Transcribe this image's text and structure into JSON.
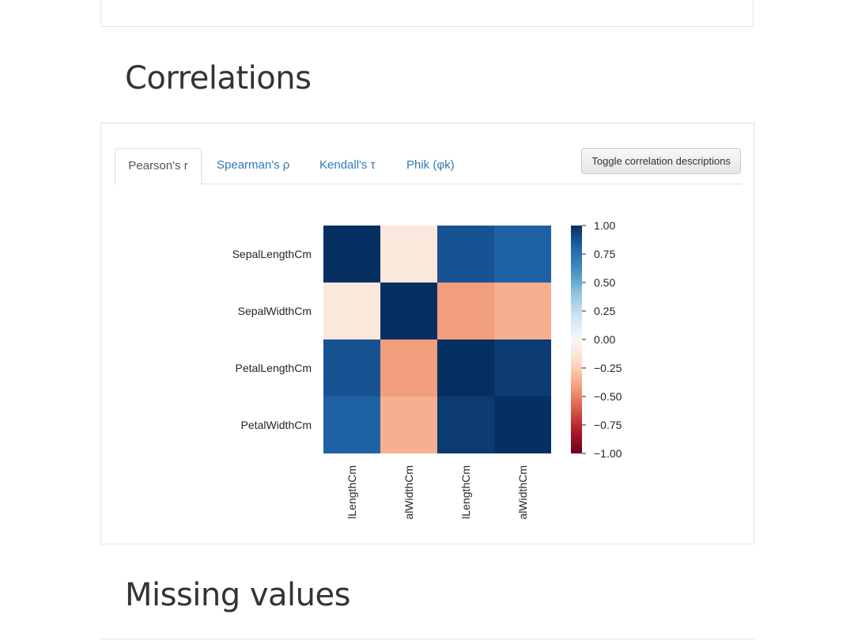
{
  "sections": {
    "correlations_title": "Correlations",
    "missing_title": "Missing values"
  },
  "tabs": [
    {
      "label": "Pearson's r",
      "active": true
    },
    {
      "label": "Spearman's ρ",
      "active": false
    },
    {
      "label": "Kendall's τ",
      "active": false
    },
    {
      "label": "Phik (φk)",
      "active": false
    }
  ],
  "toggle_button": "Toggle correlation descriptions",
  "colors": {
    "link": "#337ab7",
    "colormap": "RdBu"
  },
  "chart_data": {
    "type": "heatmap",
    "title": "",
    "row_labels": [
      "SepalLengthCm",
      "SepalWidthCm",
      "PetalLengthCm",
      "PetalWidthCm"
    ],
    "col_labels_visible": [
      "lLengthCm",
      "alWidthCm",
      "lLengthCm",
      "alWidthCm"
    ],
    "values": [
      [
        1.0,
        -0.11,
        0.87,
        0.82
      ],
      [
        -0.11,
        1.0,
        -0.42,
        -0.36
      ],
      [
        0.87,
        -0.42,
        1.0,
        0.96
      ],
      [
        0.82,
        -0.36,
        0.96,
        1.0
      ]
    ],
    "colorbar": {
      "range": [
        -1.0,
        1.0
      ],
      "ticks": [
        "1.00",
        "0.75",
        "0.50",
        "0.25",
        "0.00",
        "−0.25",
        "−0.50",
        "−0.75",
        "−1.00"
      ]
    }
  }
}
